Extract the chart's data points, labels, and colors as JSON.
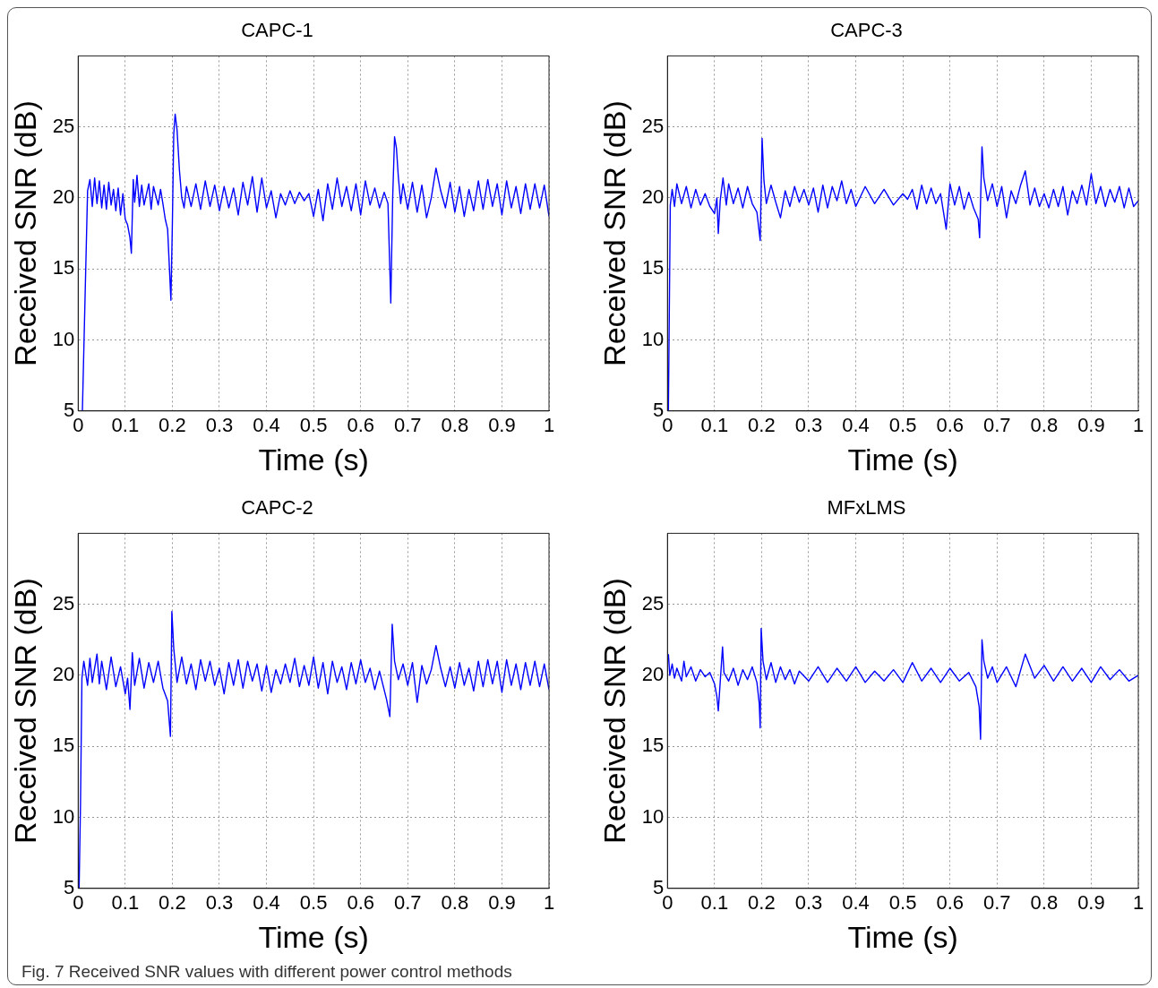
{
  "chart_data": [
    {
      "type": "line",
      "title": "CAPC-1",
      "xlabel": "Time (s)",
      "ylabel": "Received SNR (dB)",
      "color": "#0000ff",
      "xlim": [
        0,
        1
      ],
      "xticks": [
        0,
        0.1,
        0.2,
        0.3,
        0.4,
        0.5,
        0.6,
        0.7,
        0.8,
        0.9,
        1
      ],
      "ylim": [
        5,
        30
      ],
      "yticks": [
        5,
        10,
        15,
        20,
        25
      ],
      "grid": true,
      "x": [
        0.009,
        0.02,
        0.025,
        0.03,
        0.035,
        0.04,
        0.045,
        0.05,
        0.055,
        0.06,
        0.065,
        0.07,
        0.075,
        0.08,
        0.085,
        0.09,
        0.095,
        0.1,
        0.105,
        0.11,
        0.113,
        0.117,
        0.12,
        0.125,
        0.13,
        0.135,
        0.14,
        0.15,
        0.155,
        0.16,
        0.17,
        0.175,
        0.18,
        0.185,
        0.19,
        0.197,
        0.2,
        0.203,
        0.206,
        0.21,
        0.215,
        0.22,
        0.225,
        0.23,
        0.24,
        0.25,
        0.26,
        0.27,
        0.28,
        0.29,
        0.3,
        0.31,
        0.32,
        0.33,
        0.34,
        0.35,
        0.36,
        0.37,
        0.38,
        0.39,
        0.4,
        0.41,
        0.42,
        0.43,
        0.44,
        0.45,
        0.46,
        0.47,
        0.48,
        0.49,
        0.5,
        0.51,
        0.52,
        0.53,
        0.54,
        0.55,
        0.56,
        0.57,
        0.58,
        0.59,
        0.6,
        0.61,
        0.62,
        0.63,
        0.64,
        0.65,
        0.658,
        0.664,
        0.668,
        0.672,
        0.676,
        0.68,
        0.685,
        0.69,
        0.7,
        0.71,
        0.72,
        0.73,
        0.74,
        0.75,
        0.76,
        0.77,
        0.78,
        0.79,
        0.8,
        0.81,
        0.82,
        0.83,
        0.84,
        0.85,
        0.86,
        0.87,
        0.88,
        0.89,
        0.9,
        0.91,
        0.92,
        0.93,
        0.94,
        0.95,
        0.96,
        0.97,
        0.98,
        0.99,
        1
      ],
      "values": [
        5,
        20.5,
        21.3,
        19.4,
        21.4,
        19.6,
        21.2,
        19.3,
        20.9,
        19.2,
        21.1,
        19.5,
        20.6,
        19.1,
        20.7,
        18.8,
        20.3,
        18.5,
        18.1,
        17.2,
        16.1,
        21.3,
        19.7,
        21.6,
        19.4,
        20.9,
        19.5,
        21.0,
        19.2,
        20.8,
        19.5,
        20.6,
        19.6,
        18.5,
        17.8,
        12.8,
        18,
        24.5,
        25.9,
        24.8,
        22.0,
        20.0,
        19.3,
        20.8,
        19.4,
        21.0,
        19.2,
        21.2,
        19.4,
        20.9,
        19.1,
        20.8,
        19.3,
        20.7,
        18.8,
        21.1,
        19.5,
        21.5,
        19.0,
        21.4,
        19.3,
        20.5,
        18.6,
        20.3,
        19.5,
        20.5,
        19.6,
        20.4,
        19.8,
        20.3,
        18.7,
        20.6,
        18.4,
        21.0,
        19.2,
        21.4,
        19.4,
        20.8,
        19.1,
        21.0,
        18.8,
        21.2,
        19.5,
        20.7,
        19.3,
        20.4,
        19.6,
        12.6,
        20,
        24.3,
        23.5,
        21.5,
        19.6,
        21.0,
        19.2,
        21.1,
        19.0,
        20.9,
        18.6,
        20.0,
        22.1,
        20.5,
        19.3,
        21.1,
        19.0,
        20.8,
        18.7,
        20.6,
        19.1,
        21.2,
        19.2,
        21.3,
        19.4,
        21.0,
        18.8,
        21.2,
        19.3,
        20.8,
        18.9,
        21.0,
        19.2,
        21.0,
        19.3,
        20.9,
        18.7
      ]
    },
    {
      "type": "line",
      "title": "CAPC-3",
      "xlabel": "Time (s)",
      "ylabel": "Received SNR (dB)",
      "color": "#0000ff",
      "xlim": [
        0,
        1
      ],
      "xticks": [
        0,
        0.1,
        0.2,
        0.3,
        0.4,
        0.5,
        0.6,
        0.7,
        0.8,
        0.9,
        1
      ],
      "ylim": [
        5,
        30
      ],
      "yticks": [
        5,
        10,
        15,
        20,
        25
      ],
      "grid": true,
      "x": [
        0.002,
        0.006,
        0.01,
        0.015,
        0.02,
        0.03,
        0.04,
        0.05,
        0.06,
        0.07,
        0.08,
        0.09,
        0.1,
        0.105,
        0.108,
        0.112,
        0.118,
        0.125,
        0.13,
        0.14,
        0.15,
        0.16,
        0.17,
        0.18,
        0.19,
        0.197,
        0.201,
        0.205,
        0.21,
        0.22,
        0.23,
        0.24,
        0.25,
        0.26,
        0.27,
        0.28,
        0.29,
        0.3,
        0.31,
        0.32,
        0.33,
        0.34,
        0.35,
        0.36,
        0.37,
        0.38,
        0.39,
        0.4,
        0.42,
        0.44,
        0.46,
        0.48,
        0.5,
        0.51,
        0.52,
        0.53,
        0.54,
        0.55,
        0.56,
        0.57,
        0.58,
        0.592,
        0.6,
        0.61,
        0.62,
        0.63,
        0.64,
        0.65,
        0.66,
        0.663,
        0.668,
        0.672,
        0.68,
        0.69,
        0.7,
        0.71,
        0.72,
        0.73,
        0.74,
        0.75,
        0.76,
        0.77,
        0.78,
        0.79,
        0.8,
        0.81,
        0.82,
        0.83,
        0.84,
        0.85,
        0.86,
        0.87,
        0.88,
        0.89,
        0.9,
        0.91,
        0.92,
        0.93,
        0.94,
        0.95,
        0.96,
        0.97,
        0.98,
        0.99,
        1
      ],
      "values": [
        5,
        19.5,
        20.6,
        19.4,
        21.0,
        19.6,
        20.8,
        19.3,
        20.6,
        19.5,
        20.3,
        19.4,
        18.9,
        20.0,
        17.5,
        19.8,
        21.4,
        19.5,
        21.0,
        19.6,
        20.7,
        19.3,
        20.8,
        19.6,
        19.0,
        17.0,
        24.2,
        21.2,
        19.6,
        20.9,
        19.7,
        18.6,
        20.5,
        19.4,
        20.8,
        19.7,
        20.6,
        19.5,
        20.7,
        19.0,
        20.9,
        19.3,
        20.8,
        19.8,
        21.2,
        19.6,
        20.6,
        19.4,
        20.8,
        19.6,
        20.6,
        19.5,
        20.3,
        19.9,
        20.6,
        19.2,
        20.9,
        19.6,
        20.7,
        19.6,
        20.3,
        17.8,
        21.0,
        19.5,
        20.8,
        19.2,
        20.4,
        19.3,
        18.5,
        17.2,
        23.6,
        21.4,
        19.8,
        21.0,
        19.4,
        20.8,
        18.6,
        20.5,
        19.6,
        20.9,
        21.9,
        19.5,
        20.7,
        19.4,
        20.3,
        19.3,
        20.6,
        19.4,
        20.8,
        18.8,
        20.5,
        19.6,
        20.9,
        19.5,
        21.7,
        19.6,
        20.8,
        19.4,
        20.6,
        19.7,
        20.8,
        19.3,
        20.7,
        19.4,
        19.8
      ]
    },
    {
      "type": "line",
      "title": "CAPC-2",
      "xlabel": "Time (s)",
      "ylabel": "Received SNR (dB)",
      "color": "#0000ff",
      "xlim": [
        0,
        1
      ],
      "xticks": [
        0,
        0.1,
        0.2,
        0.3,
        0.4,
        0.5,
        0.6,
        0.7,
        0.8,
        0.9,
        1
      ],
      "ylim": [
        5,
        30
      ],
      "yticks": [
        5,
        10,
        15,
        20,
        25
      ],
      "grid": true,
      "x": [
        0.002,
        0.005,
        0.008,
        0.012,
        0.02,
        0.025,
        0.03,
        0.04,
        0.045,
        0.05,
        0.06,
        0.07,
        0.08,
        0.09,
        0.1,
        0.105,
        0.11,
        0.115,
        0.12,
        0.13,
        0.14,
        0.15,
        0.16,
        0.17,
        0.18,
        0.19,
        0.196,
        0.199,
        0.203,
        0.21,
        0.22,
        0.23,
        0.24,
        0.25,
        0.26,
        0.27,
        0.28,
        0.29,
        0.3,
        0.31,
        0.32,
        0.33,
        0.34,
        0.35,
        0.36,
        0.37,
        0.38,
        0.39,
        0.4,
        0.41,
        0.42,
        0.43,
        0.44,
        0.45,
        0.46,
        0.47,
        0.48,
        0.49,
        0.5,
        0.51,
        0.52,
        0.53,
        0.54,
        0.55,
        0.56,
        0.57,
        0.58,
        0.59,
        0.6,
        0.61,
        0.62,
        0.63,
        0.64,
        0.655,
        0.662,
        0.667,
        0.672,
        0.68,
        0.69,
        0.7,
        0.71,
        0.72,
        0.73,
        0.74,
        0.75,
        0.76,
        0.77,
        0.78,
        0.79,
        0.8,
        0.81,
        0.82,
        0.83,
        0.84,
        0.85,
        0.86,
        0.87,
        0.88,
        0.89,
        0.9,
        0.91,
        0.92,
        0.93,
        0.94,
        0.95,
        0.96,
        0.97,
        0.98,
        0.99,
        1
      ],
      "values": [
        5,
        11,
        19.8,
        21.0,
        19.3,
        21.2,
        19.5,
        21.5,
        19.4,
        21.0,
        19.0,
        21.3,
        19.2,
        20.6,
        18.7,
        19.8,
        17.6,
        21.6,
        19.3,
        21.2,
        19.1,
        20.9,
        19.5,
        21.0,
        19.1,
        18.2,
        15.7,
        24.5,
        21.9,
        19.5,
        21.3,
        19.4,
        20.8,
        19.0,
        21.1,
        19.6,
        21.0,
        19.3,
        20.5,
        18.7,
        20.9,
        19.3,
        21.1,
        19.1,
        21.0,
        19.6,
        20.8,
        18.9,
        20.7,
        18.8,
        20.4,
        19.4,
        20.8,
        19.5,
        21.2,
        19.2,
        20.7,
        19.3,
        21.3,
        19.1,
        20.9,
        18.7,
        21.0,
        19.5,
        20.6,
        19.0,
        20.9,
        19.4,
        21.1,
        19.5,
        20.5,
        19.0,
        20.3,
        18.3,
        17.1,
        23.6,
        21.0,
        19.7,
        20.8,
        19.3,
        20.9,
        18.1,
        20.7,
        19.4,
        20.4,
        22.1,
        20.5,
        19.2,
        20.6,
        19.1,
        20.9,
        19.3,
        20.5,
        18.9,
        21.0,
        19.2,
        21.1,
        19.4,
        21.0,
        18.8,
        21.1,
        19.3,
        20.8,
        19.0,
        20.9,
        19.3,
        21.0,
        19.2,
        20.8,
        19.0
      ]
    },
    {
      "type": "line",
      "title": "MFxLMS",
      "xlabel": "Time (s)",
      "ylabel": "Received SNR (dB)",
      "color": "#0000ff",
      "xlim": [
        0,
        1
      ],
      "xticks": [
        0,
        0.1,
        0.2,
        0.3,
        0.4,
        0.5,
        0.6,
        0.7,
        0.8,
        0.9,
        1
      ],
      "ylim": [
        5,
        30
      ],
      "yticks": [
        5,
        10,
        15,
        20,
        25
      ],
      "grid": true,
      "annotations": [
        "Fig. 7 Received SNR values with different power control methods"
      ],
      "x": [
        0.002,
        0.005,
        0.01,
        0.015,
        0.02,
        0.03,
        0.035,
        0.04,
        0.05,
        0.06,
        0.07,
        0.08,
        0.09,
        0.1,
        0.105,
        0.108,
        0.112,
        0.117,
        0.12,
        0.13,
        0.14,
        0.15,
        0.16,
        0.17,
        0.18,
        0.19,
        0.195,
        0.197,
        0.199,
        0.203,
        0.21,
        0.22,
        0.23,
        0.24,
        0.25,
        0.26,
        0.27,
        0.28,
        0.3,
        0.32,
        0.34,
        0.36,
        0.38,
        0.4,
        0.42,
        0.44,
        0.46,
        0.48,
        0.5,
        0.52,
        0.54,
        0.56,
        0.58,
        0.6,
        0.62,
        0.64,
        0.655,
        0.662,
        0.665,
        0.668,
        0.672,
        0.68,
        0.69,
        0.7,
        0.72,
        0.74,
        0.76,
        0.78,
        0.8,
        0.82,
        0.84,
        0.86,
        0.88,
        0.9,
        0.92,
        0.94,
        0.96,
        0.98,
        1
      ],
      "values": [
        21.5,
        20.0,
        20.8,
        19.8,
        20.5,
        19.6,
        21.0,
        19.9,
        20.6,
        19.6,
        20.4,
        19.9,
        20.2,
        19.4,
        18.5,
        17.5,
        19.5,
        22.0,
        20.2,
        19.6,
        20.5,
        19.3,
        20.4,
        19.7,
        20.6,
        19.5,
        18.0,
        16.3,
        23.3,
        21.0,
        19.7,
        20.9,
        19.5,
        20.6,
        19.7,
        20.4,
        19.4,
        20.3,
        19.6,
        20.6,
        19.5,
        20.5,
        19.6,
        20.6,
        19.5,
        20.3,
        19.6,
        20.4,
        19.5,
        20.9,
        19.6,
        20.5,
        19.5,
        20.5,
        19.6,
        20.2,
        19.2,
        17.8,
        15.5,
        22.5,
        21.0,
        19.8,
        20.6,
        19.5,
        20.6,
        19.2,
        21.5,
        19.8,
        20.7,
        19.6,
        20.6,
        19.6,
        20.5,
        19.5,
        20.6,
        19.7,
        20.4,
        19.6,
        20.0
      ]
    }
  ]
}
